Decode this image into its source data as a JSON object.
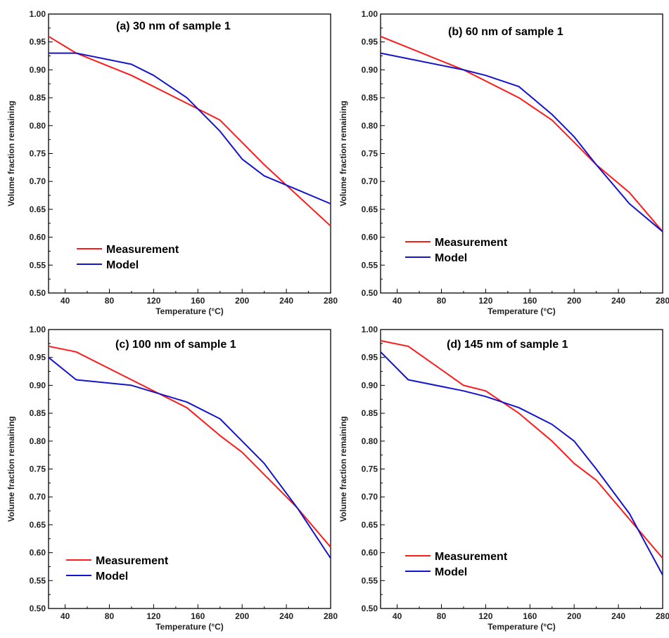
{
  "chart_data": [
    {
      "type": "line",
      "title": "(a) 30 nm of sample 1",
      "xlabel": "Temperature (°C)",
      "ylabel": "Volume  fraction  remaining",
      "xlim": [
        25,
        280
      ],
      "ylim": [
        0.5,
        1.0
      ],
      "xticks": [
        "40",
        "80",
        "120",
        "160",
        "200",
        "240",
        "280"
      ],
      "yticks": [
        "0.50",
        "0.55",
        "0.60",
        "0.65",
        "0.70",
        "0.75",
        "0.80",
        "0.85",
        "0.90",
        "0.95",
        "1.00"
      ],
      "legend_position": "lower-left",
      "series": [
        {
          "name": "Measurement",
          "color": "#ff1a1a",
          "x": [
            25,
            50,
            100,
            150,
            180,
            220,
            280
          ],
          "y": [
            0.96,
            0.93,
            0.89,
            0.84,
            0.81,
            0.73,
            0.62
          ]
        },
        {
          "name": "Model",
          "color": "#1414cc",
          "x": [
            25,
            50,
            100,
            120,
            150,
            180,
            200,
            220,
            250,
            280
          ],
          "y": [
            0.93,
            0.93,
            0.91,
            0.89,
            0.85,
            0.79,
            0.74,
            0.71,
            0.685,
            0.66
          ]
        }
      ]
    },
    {
      "type": "line",
      "title": "(b) 60 nm of sample 1",
      "xlabel": "Temperature (°C)",
      "ylabel": "Volume  fraction  remaining",
      "xlim": [
        25,
        280
      ],
      "ylim": [
        0.5,
        1.0
      ],
      "xticks": [
        "40",
        "80",
        "120",
        "160",
        "200",
        "240",
        "280"
      ],
      "yticks": [
        "0.50",
        "0.55",
        "0.60",
        "0.65",
        "0.70",
        "0.75",
        "0.80",
        "0.85",
        "0.90",
        "0.95",
        "1.00"
      ],
      "legend_position": "lower-left",
      "series": [
        {
          "name": "Measurement",
          "color": "#ff1a1a",
          "x": [
            25,
            100,
            150,
            180,
            200,
            220,
            250,
            280
          ],
          "y": [
            0.96,
            0.9,
            0.85,
            0.81,
            0.77,
            0.73,
            0.68,
            0.61
          ]
        },
        {
          "name": "Model",
          "color": "#1414cc",
          "x": [
            25,
            100,
            120,
            150,
            180,
            200,
            220,
            250,
            280
          ],
          "y": [
            0.93,
            0.9,
            0.89,
            0.87,
            0.82,
            0.78,
            0.73,
            0.66,
            0.61
          ]
        }
      ]
    },
    {
      "type": "line",
      "title": "(c) 100 nm of sample 1",
      "xlabel": "Temperature (°C)",
      "ylabel": "Volume  fraction  remaining",
      "xlim": [
        25,
        280
      ],
      "ylim": [
        0.5,
        1.0
      ],
      "xticks": [
        "40",
        "80",
        "120",
        "160",
        "200",
        "240",
        "280"
      ],
      "yticks": [
        "0.50",
        "0.55",
        "0.60",
        "0.65",
        "0.70",
        "0.75",
        "0.80",
        "0.85",
        "0.90",
        "0.95",
        "1.00"
      ],
      "legend_position": "lower-left",
      "series": [
        {
          "name": "Measurement",
          "color": "#ff1a1a",
          "x": [
            25,
            50,
            100,
            150,
            180,
            200,
            220,
            250,
            280
          ],
          "y": [
            0.97,
            0.96,
            0.91,
            0.86,
            0.81,
            0.78,
            0.74,
            0.68,
            0.61
          ]
        },
        {
          "name": "Model",
          "color": "#1414cc",
          "x": [
            25,
            50,
            100,
            150,
            180,
            200,
            220,
            250,
            280
          ],
          "y": [
            0.95,
            0.91,
            0.9,
            0.87,
            0.84,
            0.8,
            0.76,
            0.68,
            0.59
          ]
        }
      ]
    },
    {
      "type": "line",
      "title": "(d) 145 nm of sample 1",
      "xlabel": "Temperature (°C)",
      "ylabel": "Volume  fraction  remaining",
      "xlim": [
        25,
        280
      ],
      "ylim": [
        0.5,
        1.0
      ],
      "xticks": [
        "40",
        "80",
        "120",
        "160",
        "200",
        "240",
        "280"
      ],
      "yticks": [
        "0.50",
        "0.55",
        "0.60",
        "0.65",
        "0.70",
        "0.75",
        "0.80",
        "0.85",
        "0.90",
        "0.95",
        "1.00"
      ],
      "legend_position": "lower-left",
      "series": [
        {
          "name": "Measurement",
          "color": "#ff1a1a",
          "x": [
            25,
            50,
            100,
            120,
            150,
            180,
            200,
            220,
            250,
            280
          ],
          "y": [
            0.98,
            0.97,
            0.9,
            0.89,
            0.85,
            0.8,
            0.76,
            0.73,
            0.66,
            0.59
          ]
        },
        {
          "name": "Model",
          "color": "#1414cc",
          "x": [
            25,
            50,
            100,
            120,
            150,
            180,
            200,
            220,
            250,
            280
          ],
          "y": [
            0.96,
            0.91,
            0.89,
            0.88,
            0.86,
            0.83,
            0.8,
            0.75,
            0.67,
            0.56
          ]
        }
      ]
    }
  ]
}
